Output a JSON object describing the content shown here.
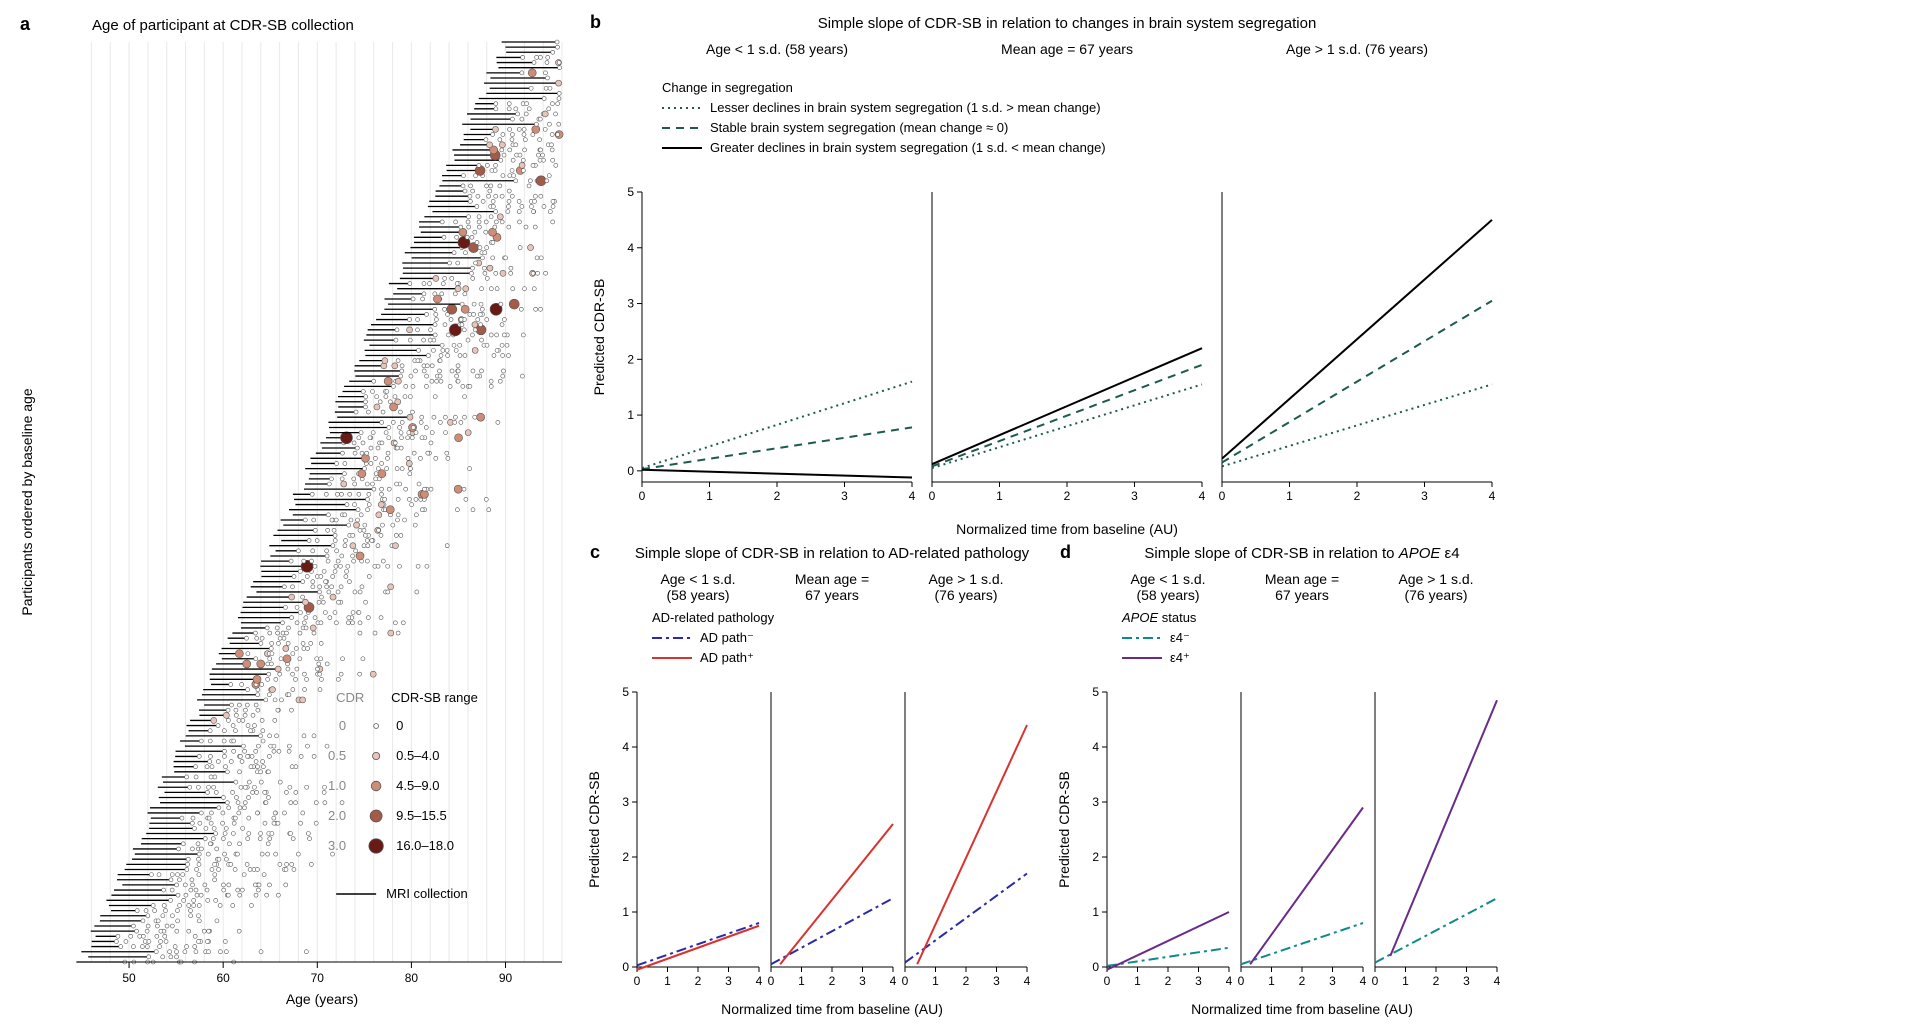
{
  "panelA": {
    "letter": "a",
    "title": "Age of participant at CDR-SB collection",
    "xlabel": "Age (years)",
    "ylabel": "Participants ordered by baseline age",
    "xlim": [
      45,
      96
    ],
    "xticks": [
      50,
      60,
      70,
      80,
      90
    ],
    "gridlines": [
      46,
      48,
      50,
      52,
      54,
      56,
      58,
      60,
      62,
      64,
      66,
      68,
      70,
      72,
      74,
      76,
      78,
      80,
      82,
      84,
      86,
      88,
      90,
      92,
      94,
      96
    ],
    "grid_color": "#e8e8e8",
    "legend": {
      "cdr_header": "CDR",
      "cdrsb_header": "CDR-SB range",
      "rows": [
        {
          "cdr": "0",
          "range": "0",
          "color": "#ffffff",
          "size": 4
        },
        {
          "cdr": "0.5",
          "range": "0.5–4.0",
          "color": "#e9c4b8",
          "size": 6
        },
        {
          "cdr": "1.0",
          "range": "4.5–9.0",
          "color": "#cf8d78",
          "size": 8
        },
        {
          "cdr": "2.0",
          "range": "9.5–15.5",
          "color": "#a35a48",
          "size": 10
        },
        {
          "cdr": "3.0",
          "range": "16.0–18.0",
          "color": "#6a1a14",
          "size": 12
        }
      ],
      "mri_label": "MRI collection"
    }
  },
  "panelB": {
    "letter": "b",
    "title": "Simple slope of CDR-SB in relation to changes in brain system segregation",
    "xlabel": "Normalized time from baseline (AU)",
    "ylabel": "Predicted CDR-SB",
    "xlim": [
      0,
      4
    ],
    "xticks": [
      0,
      1,
      2,
      3,
      4
    ],
    "ylim": [
      -0.2,
      5
    ],
    "yticks": [
      0,
      1,
      2,
      3,
      4,
      5
    ],
    "legend_title": "Change in segregation",
    "legend_items": [
      {
        "label": "Lesser declines in brain system segregation (1 s.d. > mean change)",
        "color": "#1e5a50",
        "dash": "2,4",
        "width": 2
      },
      {
        "label": "Stable brain system segregation (mean change ≈ 0)",
        "color": "#1e5a50",
        "dash": "8,6",
        "width": 2
      },
      {
        "label": "Greater declines in brain system segregation (1 s.d. < mean change)",
        "color": "#000000",
        "dash": "",
        "width": 2
      }
    ],
    "facets": [
      {
        "title": "Age < 1 s.d. (58 years)",
        "lines": [
          {
            "p": [
              [
                0,
                0.05
              ],
              [
                4,
                1.6
              ]
            ],
            "color": "#1e5a50",
            "dash": "2,4",
            "w": 2
          },
          {
            "p": [
              [
                0,
                0.03
              ],
              [
                4,
                0.78
              ]
            ],
            "color": "#1e5a50",
            "dash": "8,6",
            "w": 2
          },
          {
            "p": [
              [
                0,
                0.02
              ],
              [
                4,
                -0.12
              ]
            ],
            "color": "#000000",
            "dash": "",
            "w": 2
          }
        ]
      },
      {
        "title": "Mean age = 67 years",
        "lines": [
          {
            "p": [
              [
                0,
                0.05
              ],
              [
                4,
                1.55
              ]
            ],
            "color": "#1e5a50",
            "dash": "2,4",
            "w": 2
          },
          {
            "p": [
              [
                0,
                0.08
              ],
              [
                4,
                1.9
              ]
            ],
            "color": "#1e5a50",
            "dash": "8,6",
            "w": 2
          },
          {
            "p": [
              [
                0,
                0.12
              ],
              [
                4,
                2.2
              ]
            ],
            "color": "#000000",
            "dash": "",
            "w": 2
          }
        ]
      },
      {
        "title": "Age > 1 s.d. (76 years)",
        "lines": [
          {
            "p": [
              [
                0,
                0.08
              ],
              [
                4,
                1.55
              ]
            ],
            "color": "#1e5a50",
            "dash": "2,4",
            "w": 2
          },
          {
            "p": [
              [
                0,
                0.15
              ],
              [
                4,
                3.05
              ]
            ],
            "color": "#1e5a50",
            "dash": "8,6",
            "w": 2
          },
          {
            "p": [
              [
                0,
                0.22
              ],
              [
                4,
                4.5
              ]
            ],
            "color": "#000000",
            "dash": "",
            "w": 2
          }
        ]
      }
    ]
  },
  "panelC": {
    "letter": "c",
    "title": "Simple slope of CDR-SB in relation to AD-related pathology",
    "xlabel": "Normalized time from baseline (AU)",
    "ylabel": "Predicted CDR-SB",
    "xlim": [
      0,
      4
    ],
    "xticks": [
      0,
      1,
      2,
      3,
      4
    ],
    "ylim": [
      0,
      5
    ],
    "yticks": [
      0,
      1,
      2,
      3,
      4,
      5
    ],
    "legend_title": "AD-related pathology",
    "legend_items": [
      {
        "label": "AD path⁻",
        "color": "#2a2aa8",
        "dash": "10,4,3,4",
        "w": 2
      },
      {
        "label": "AD path⁺",
        "color": "#d8332f",
        "dash": "",
        "w": 2
      }
    ],
    "facets": [
      {
        "title": "Age < 1 s.d.\n(58 years)",
        "lines": [
          {
            "p": [
              [
                0,
                0.03
              ],
              [
                4,
                0.8
              ]
            ],
            "color": "#2a2aa8",
            "dash": "10,4,3,4",
            "w": 2
          },
          {
            "p": [
              [
                0,
                -0.05
              ],
              [
                4,
                0.75
              ]
            ],
            "color": "#d8332f",
            "dash": "",
            "w": 2
          }
        ]
      },
      {
        "title": "Mean age =\n67 years",
        "lines": [
          {
            "p": [
              [
                0,
                0.05
              ],
              [
                4,
                1.25
              ]
            ],
            "color": "#2a2aa8",
            "dash": "10,4,3,4",
            "w": 2
          },
          {
            "p": [
              [
                0.3,
                0.05
              ],
              [
                4,
                2.6
              ]
            ],
            "color": "#d8332f",
            "dash": "",
            "w": 2
          }
        ]
      },
      {
        "title": "Age > 1 s.d.\n(76 years)",
        "lines": [
          {
            "p": [
              [
                0,
                0.08
              ],
              [
                4,
                1.7
              ]
            ],
            "color": "#2a2aa8",
            "dash": "10,4,3,4",
            "w": 2
          },
          {
            "p": [
              [
                0.4,
                0.05
              ],
              [
                4,
                4.4
              ]
            ],
            "color": "#d8332f",
            "dash": "",
            "w": 2
          }
        ]
      }
    ]
  },
  "panelD": {
    "letter": "d",
    "title": "Simple slope of CDR-SB in relation to APOE ε4",
    "title_html": "Simple slope of CDR-SB in relation to <tspan font-style='italic'>APOE</tspan> ε4",
    "xlabel": "Normalized time from baseline (AU)",
    "ylabel": "Predicted CDR-SB",
    "xlim": [
      0,
      4
    ],
    "xticks": [
      0,
      1,
      2,
      3,
      4
    ],
    "ylim": [
      0,
      5
    ],
    "yticks": [
      0,
      1,
      2,
      3,
      4,
      5
    ],
    "legend_title": "APOE status",
    "legend_items": [
      {
        "label": "ε4⁻",
        "color": "#0f8a8a",
        "dash": "10,4,3,4",
        "w": 2
      },
      {
        "label": "ε4⁺",
        "color": "#6a2a8a",
        "dash": "",
        "w": 2
      }
    ],
    "facets": [
      {
        "title": "Age < 1 s.d.\n(58 years)",
        "lines": [
          {
            "p": [
              [
                0,
                0.02
              ],
              [
                4,
                0.35
              ]
            ],
            "color": "#0f8a8a",
            "dash": "10,4,3,4",
            "w": 2
          },
          {
            "p": [
              [
                0,
                -0.05
              ],
              [
                4,
                1.0
              ]
            ],
            "color": "#6a2a8a",
            "dash": "",
            "w": 2
          }
        ]
      },
      {
        "title": "Mean age =\n67 years",
        "lines": [
          {
            "p": [
              [
                0,
                0.05
              ],
              [
                4,
                0.8
              ]
            ],
            "color": "#0f8a8a",
            "dash": "10,4,3,4",
            "w": 2
          },
          {
            "p": [
              [
                0.3,
                0.05
              ],
              [
                4,
                2.9
              ]
            ],
            "color": "#6a2a8a",
            "dash": "",
            "w": 2
          }
        ]
      },
      {
        "title": "Age > 1 s.d.\n(76 years)",
        "lines": [
          {
            "p": [
              [
                0,
                0.08
              ],
              [
                4,
                1.25
              ]
            ],
            "color": "#0f8a8a",
            "dash": "10,4,3,4",
            "w": 2
          },
          {
            "p": [
              [
                0.5,
                0.2
              ],
              [
                4,
                4.85
              ]
            ],
            "color": "#6a2a8a",
            "dash": "",
            "w": 2
          }
        ]
      }
    ]
  }
}
